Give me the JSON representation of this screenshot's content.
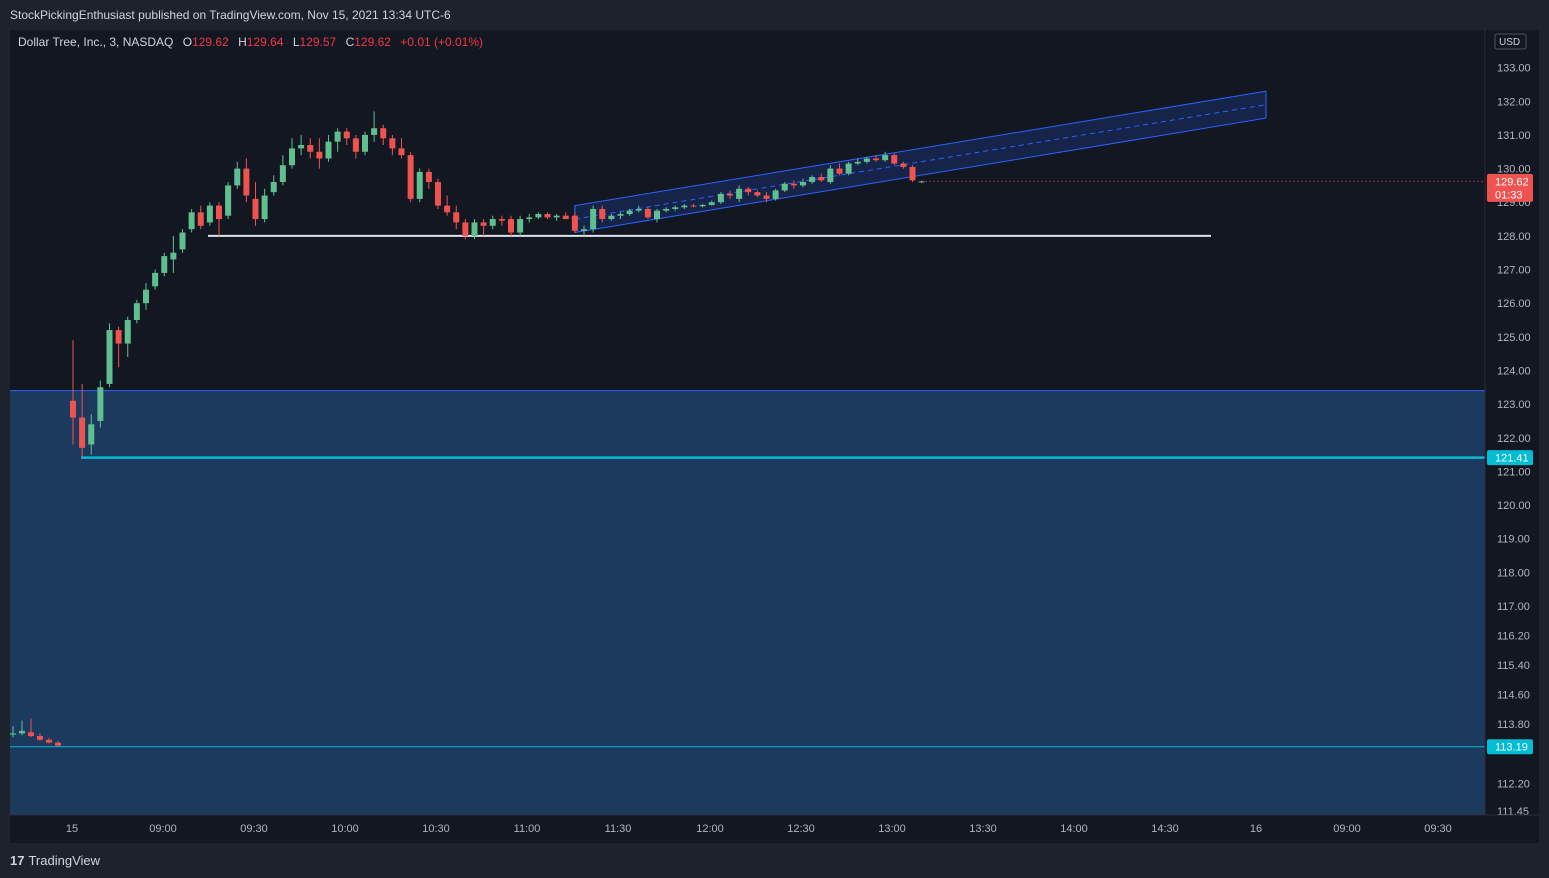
{
  "header": {
    "published_text": "StockPickingEnthusiast published on TradingView.com, Nov 15, 2021 13:34 UTC-6"
  },
  "legend": {
    "symbol": "Dollar Tree, Inc., 3, NASDAQ",
    "open_label": "O",
    "open": "129.62",
    "high_label": "H",
    "high": "129.64",
    "low_label": "L",
    "low": "129.57",
    "close_label": "C",
    "close": "129.62",
    "change": "+0.01 (+0.01%)"
  },
  "footer": {
    "brand": "TradingView",
    "brand_mark": "17"
  },
  "colors": {
    "background": "#131722",
    "up": "#26a69a",
    "up_fill": "#5fbf8f",
    "down": "#ef5350",
    "zone": "#1c3a5e",
    "cyan_line": "#00bcd4",
    "channel": "#2962ff",
    "support": "#e0e3eb"
  },
  "chart_data": {
    "type": "candlestick",
    "title": "Dollar Tree, Inc., 3, NASDAQ",
    "currency": "USD",
    "ylim": [
      111.45,
      134.0
    ],
    "y_ticks": [
      "133.00",
      "132.00",
      "131.00",
      "130.00",
      "129.00",
      "128.00",
      "127.00",
      "126.00",
      "125.00",
      "124.00",
      "123.00",
      "122.00",
      "121.00",
      "120.00",
      "119.00",
      "118.00",
      "117.00",
      "116.20",
      "115.40",
      "114.60",
      "113.80",
      "112.20",
      "111.45"
    ],
    "x_ticks": [
      "15",
      "09:00",
      "09:30",
      "10:00",
      "10:30",
      "11:00",
      "11:30",
      "12:00",
      "12:30",
      "13:00",
      "13:30",
      "14:00",
      "14:30",
      "16",
      "09:00",
      "09:30"
    ],
    "prev_session": [
      {
        "o": 113.52,
        "h": 113.75,
        "l": 113.45,
        "c": 113.55
      },
      {
        "o": 113.55,
        "h": 113.9,
        "l": 113.5,
        "c": 113.62
      },
      {
        "o": 113.58,
        "h": 113.95,
        "l": 113.45,
        "c": 113.48
      },
      {
        "o": 113.48,
        "h": 113.55,
        "l": 113.35,
        "c": 113.38
      },
      {
        "o": 113.38,
        "h": 113.42,
        "l": 113.28,
        "c": 113.3
      },
      {
        "o": 113.3,
        "h": 113.35,
        "l": 113.2,
        "c": 113.22
      }
    ],
    "candles": [
      {
        "o": 123.1,
        "h": 124.9,
        "l": 121.8,
        "c": 122.6
      },
      {
        "o": 122.6,
        "h": 123.6,
        "l": 121.4,
        "c": 121.7
      },
      {
        "o": 121.8,
        "h": 122.7,
        "l": 121.5,
        "c": 122.4
      },
      {
        "o": 122.5,
        "h": 123.7,
        "l": 122.3,
        "c": 123.5
      },
      {
        "o": 123.6,
        "h": 125.4,
        "l": 123.5,
        "c": 125.2
      },
      {
        "o": 125.2,
        "h": 125.3,
        "l": 124.1,
        "c": 124.8
      },
      {
        "o": 124.8,
        "h": 125.6,
        "l": 124.4,
        "c": 125.5
      },
      {
        "o": 125.5,
        "h": 126.1,
        "l": 125.4,
        "c": 126.0
      },
      {
        "o": 126.0,
        "h": 126.6,
        "l": 125.8,
        "c": 126.4
      },
      {
        "o": 126.5,
        "h": 127.0,
        "l": 126.4,
        "c": 126.9
      },
      {
        "o": 126.9,
        "h": 127.5,
        "l": 126.8,
        "c": 127.4
      },
      {
        "o": 127.3,
        "h": 128.0,
        "l": 126.9,
        "c": 127.5
      },
      {
        "o": 127.6,
        "h": 128.2,
        "l": 127.5,
        "c": 128.1
      },
      {
        "o": 128.2,
        "h": 128.8,
        "l": 128.1,
        "c": 128.7
      },
      {
        "o": 128.7,
        "h": 128.9,
        "l": 128.2,
        "c": 128.3
      },
      {
        "o": 128.4,
        "h": 129.0,
        "l": 128.3,
        "c": 128.9
      },
      {
        "o": 128.9,
        "h": 129.0,
        "l": 128.0,
        "c": 128.5
      },
      {
        "o": 128.6,
        "h": 129.6,
        "l": 128.5,
        "c": 129.5
      },
      {
        "o": 129.5,
        "h": 130.2,
        "l": 129.4,
        "c": 130.0
      },
      {
        "o": 130.0,
        "h": 130.3,
        "l": 129.0,
        "c": 129.2
      },
      {
        "o": 129.1,
        "h": 129.6,
        "l": 128.3,
        "c": 128.5
      },
      {
        "o": 128.5,
        "h": 129.4,
        "l": 128.4,
        "c": 129.2
      },
      {
        "o": 129.3,
        "h": 129.8,
        "l": 129.2,
        "c": 129.6
      },
      {
        "o": 129.6,
        "h": 130.4,
        "l": 129.5,
        "c": 130.1
      },
      {
        "o": 130.1,
        "h": 130.9,
        "l": 130.0,
        "c": 130.6
      },
      {
        "o": 130.6,
        "h": 131.0,
        "l": 130.4,
        "c": 130.7
      },
      {
        "o": 130.7,
        "h": 130.9,
        "l": 130.3,
        "c": 130.5
      },
      {
        "o": 130.5,
        "h": 130.9,
        "l": 130.0,
        "c": 130.3
      },
      {
        "o": 130.3,
        "h": 131.0,
        "l": 130.2,
        "c": 130.8
      },
      {
        "o": 130.8,
        "h": 131.2,
        "l": 130.5,
        "c": 131.1
      },
      {
        "o": 131.1,
        "h": 131.2,
        "l": 130.7,
        "c": 130.9
      },
      {
        "o": 130.9,
        "h": 131.0,
        "l": 130.3,
        "c": 130.5
      },
      {
        "o": 130.5,
        "h": 131.1,
        "l": 130.4,
        "c": 131.0
      },
      {
        "o": 131.0,
        "h": 131.7,
        "l": 130.8,
        "c": 131.2
      },
      {
        "o": 131.2,
        "h": 131.3,
        "l": 130.7,
        "c": 130.9
      },
      {
        "o": 130.9,
        "h": 131.0,
        "l": 130.4,
        "c": 130.6
      },
      {
        "o": 130.6,
        "h": 130.9,
        "l": 130.3,
        "c": 130.4
      },
      {
        "o": 130.4,
        "h": 130.5,
        "l": 129.0,
        "c": 129.1
      },
      {
        "o": 129.1,
        "h": 130.0,
        "l": 129.0,
        "c": 129.9
      },
      {
        "o": 129.9,
        "h": 130.0,
        "l": 129.4,
        "c": 129.6
      },
      {
        "o": 129.6,
        "h": 129.7,
        "l": 128.8,
        "c": 128.9
      },
      {
        "o": 128.9,
        "h": 129.2,
        "l": 128.6,
        "c": 128.7
      },
      {
        "o": 128.7,
        "h": 128.9,
        "l": 128.2,
        "c": 128.4
      },
      {
        "o": 128.4,
        "h": 128.5,
        "l": 127.9,
        "c": 128.0
      },
      {
        "o": 128.0,
        "h": 128.5,
        "l": 127.9,
        "c": 128.4
      },
      {
        "o": 128.4,
        "h": 128.5,
        "l": 128.0,
        "c": 128.3
      },
      {
        "o": 128.3,
        "h": 128.6,
        "l": 128.2,
        "c": 128.5
      },
      {
        "o": 128.5,
        "h": 128.6,
        "l": 128.3,
        "c": 128.45
      },
      {
        "o": 128.5,
        "h": 128.6,
        "l": 128.0,
        "c": 128.1
      },
      {
        "o": 128.1,
        "h": 128.6,
        "l": 128.0,
        "c": 128.5
      },
      {
        "o": 128.5,
        "h": 128.65,
        "l": 128.4,
        "c": 128.55
      },
      {
        "o": 128.55,
        "h": 128.7,
        "l": 128.5,
        "c": 128.65
      },
      {
        "o": 128.65,
        "h": 128.7,
        "l": 128.5,
        "c": 128.55
      },
      {
        "o": 128.55,
        "h": 128.65,
        "l": 128.45,
        "c": 128.6
      },
      {
        "o": 128.6,
        "h": 128.7,
        "l": 128.5,
        "c": 128.5
      },
      {
        "o": 128.6,
        "h": 128.7,
        "l": 128.1,
        "c": 128.15
      },
      {
        "o": 128.15,
        "h": 128.3,
        "l": 128.0,
        "c": 128.2
      },
      {
        "o": 128.2,
        "h": 128.9,
        "l": 128.1,
        "c": 128.8
      },
      {
        "o": 128.8,
        "h": 128.9,
        "l": 128.4,
        "c": 128.5
      },
      {
        "o": 128.5,
        "h": 128.65,
        "l": 128.45,
        "c": 128.6
      },
      {
        "o": 128.6,
        "h": 128.7,
        "l": 128.5,
        "c": 128.65
      },
      {
        "o": 128.65,
        "h": 128.8,
        "l": 128.6,
        "c": 128.75
      },
      {
        "o": 128.75,
        "h": 128.9,
        "l": 128.7,
        "c": 128.8
      },
      {
        "o": 128.8,
        "h": 128.85,
        "l": 128.5,
        "c": 128.55
      },
      {
        "o": 128.5,
        "h": 128.8,
        "l": 128.4,
        "c": 128.75
      },
      {
        "o": 128.75,
        "h": 128.85,
        "l": 128.7,
        "c": 128.8
      },
      {
        "o": 128.8,
        "h": 128.9,
        "l": 128.75,
        "c": 128.85
      },
      {
        "o": 128.85,
        "h": 128.95,
        "l": 128.8,
        "c": 128.9
      },
      {
        "o": 128.9,
        "h": 128.95,
        "l": 128.85,
        "c": 128.88
      },
      {
        "o": 128.88,
        "h": 128.95,
        "l": 128.85,
        "c": 128.92
      },
      {
        "o": 128.92,
        "h": 129.05,
        "l": 128.9,
        "c": 129.0
      },
      {
        "o": 129.0,
        "h": 129.3,
        "l": 128.95,
        "c": 129.25
      },
      {
        "o": 129.25,
        "h": 129.35,
        "l": 129.1,
        "c": 129.2
      },
      {
        "o": 129.1,
        "h": 129.5,
        "l": 129.0,
        "c": 129.4
      },
      {
        "o": 129.4,
        "h": 129.45,
        "l": 129.2,
        "c": 129.3
      },
      {
        "o": 129.3,
        "h": 129.35,
        "l": 129.15,
        "c": 129.2
      },
      {
        "o": 129.2,
        "h": 129.3,
        "l": 129.0,
        "c": 129.1
      },
      {
        "o": 129.1,
        "h": 129.4,
        "l": 129.05,
        "c": 129.35
      },
      {
        "o": 129.35,
        "h": 129.6,
        "l": 129.3,
        "c": 129.55
      },
      {
        "o": 129.55,
        "h": 129.65,
        "l": 129.4,
        "c": 129.5
      },
      {
        "o": 129.5,
        "h": 129.7,
        "l": 129.45,
        "c": 129.6
      },
      {
        "o": 129.6,
        "h": 129.8,
        "l": 129.55,
        "c": 129.75
      },
      {
        "o": 129.75,
        "h": 129.85,
        "l": 129.6,
        "c": 129.65
      },
      {
        "o": 129.6,
        "h": 130.1,
        "l": 129.55,
        "c": 130.0
      },
      {
        "o": 130.0,
        "h": 130.15,
        "l": 129.8,
        "c": 129.85
      },
      {
        "o": 129.85,
        "h": 130.2,
        "l": 129.8,
        "c": 130.15
      },
      {
        "o": 130.15,
        "h": 130.3,
        "l": 130.1,
        "c": 130.2
      },
      {
        "o": 130.2,
        "h": 130.35,
        "l": 130.15,
        "c": 130.3
      },
      {
        "o": 130.3,
        "h": 130.4,
        "l": 130.2,
        "c": 130.25
      },
      {
        "o": 130.25,
        "h": 130.5,
        "l": 130.2,
        "c": 130.4
      },
      {
        "o": 130.4,
        "h": 130.45,
        "l": 130.1,
        "c": 130.15
      },
      {
        "o": 130.15,
        "h": 130.2,
        "l": 130.0,
        "c": 130.05
      },
      {
        "o": 130.05,
        "h": 130.1,
        "l": 129.6,
        "c": 129.65
      },
      {
        "o": 129.62,
        "h": 129.64,
        "l": 129.57,
        "c": 129.62
      }
    ],
    "levels": {
      "zone_top": 123.4,
      "cyan_level": 121.41,
      "cyan_label": "121.41",
      "lower_level": 113.19,
      "lower_label": "113.19",
      "support": 128.0,
      "last_price": "129.62",
      "countdown": "01:33"
    },
    "channel": {
      "start_index": 55,
      "start_mid": 128.5,
      "end_mid": 131.9,
      "half_width": 0.4
    }
  }
}
